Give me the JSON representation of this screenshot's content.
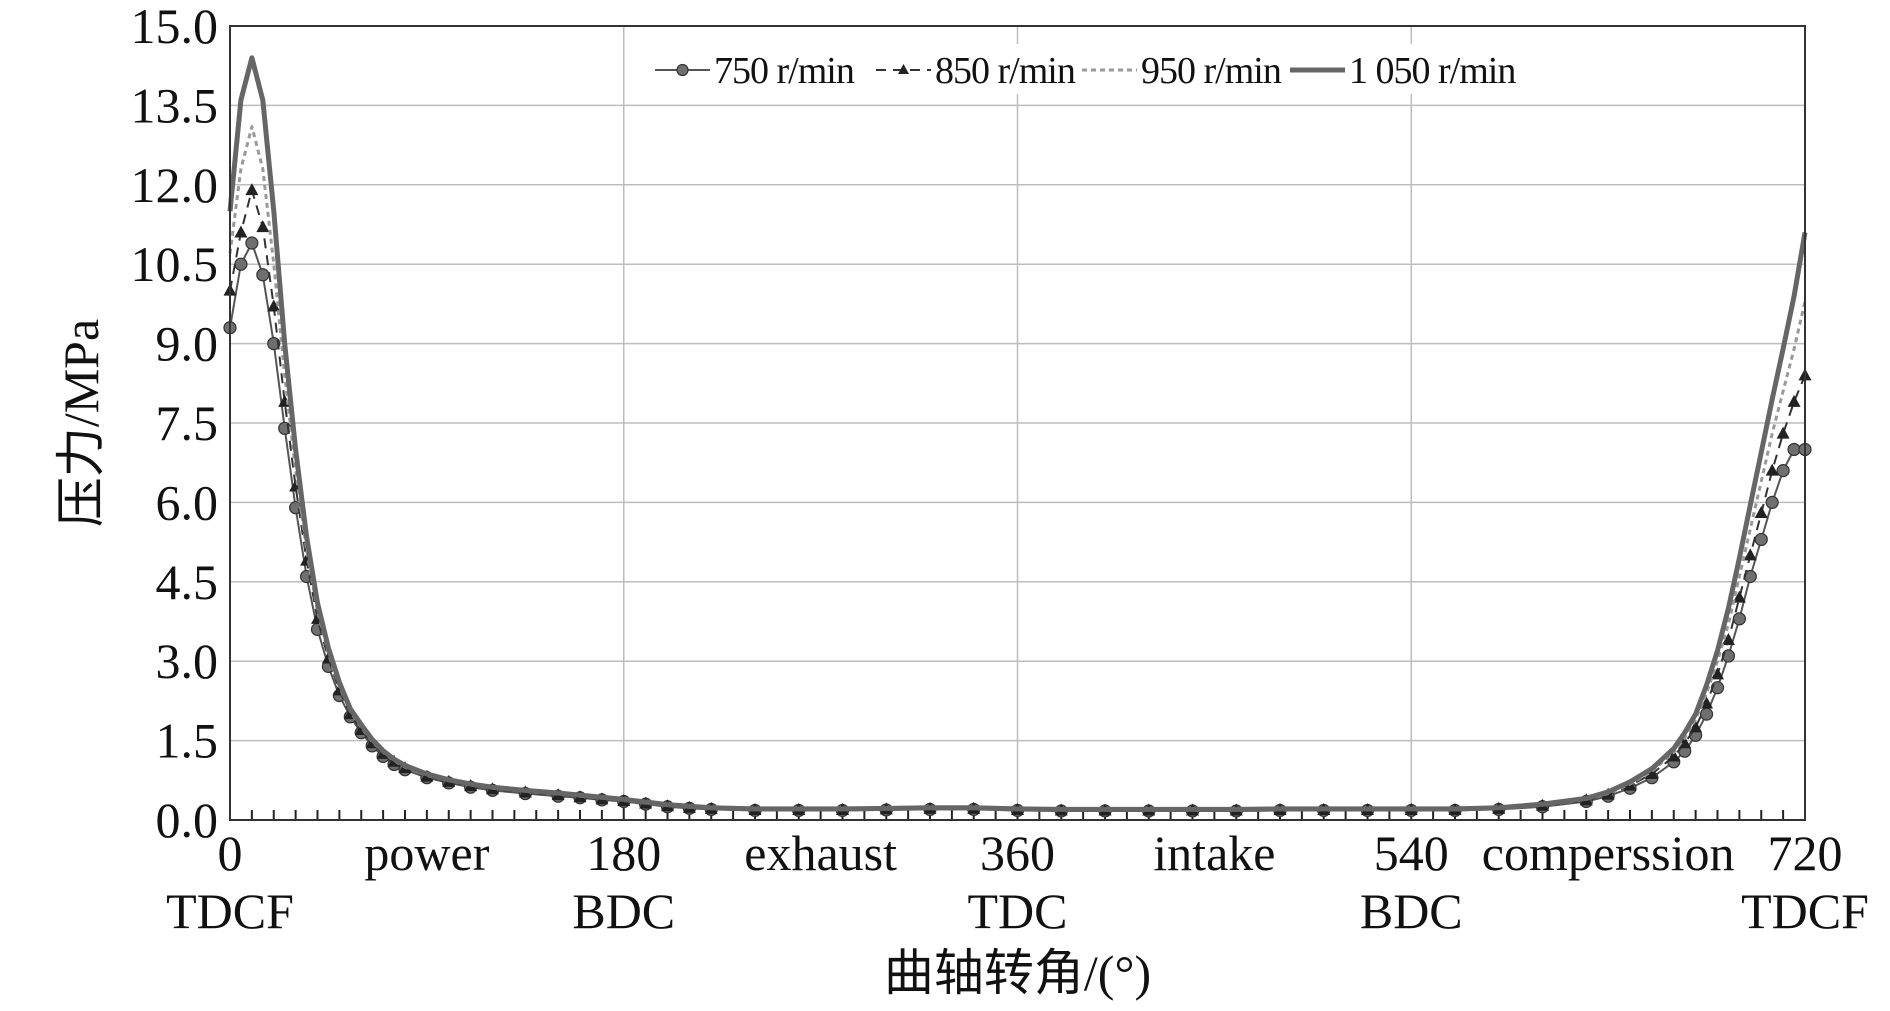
{
  "chart_data": {
    "type": "line",
    "title": "",
    "xlabel": "曲轴转角/(°)",
    "ylabel": "压力/MPa",
    "xlim": [
      0,
      720
    ],
    "ylim": [
      0,
      15
    ],
    "grid": true,
    "legend_position": "top-center",
    "y_ticks": [
      "0.0",
      "1.5",
      "3.0",
      "4.5",
      "6.0",
      "7.5",
      "9.0",
      "10.5",
      "12.0",
      "13.5",
      "15.0"
    ],
    "x_tick_labels": [
      {
        "x": 0,
        "line1": "0",
        "line2": "TDCF"
      },
      {
        "x": 90,
        "line1": "power",
        "line2": ""
      },
      {
        "x": 180,
        "line1": "180",
        "line2": "BDC"
      },
      {
        "x": 270,
        "line1": "exhaust",
        "line2": ""
      },
      {
        "x": 360,
        "line1": "360",
        "line2": "TDC"
      },
      {
        "x": 450,
        "line1": "intake",
        "line2": ""
      },
      {
        "x": 540,
        "line1": "540",
        "line2": "BDC"
      },
      {
        "x": 630,
        "line1": "comperssion",
        "line2": ""
      },
      {
        "x": 720,
        "line1": "720",
        "line2": "TDCF"
      }
    ],
    "x": [
      0,
      5,
      10,
      15,
      20,
      25,
      30,
      35,
      40,
      45,
      50,
      55,
      60,
      65,
      70,
      75,
      80,
      90,
      100,
      110,
      120,
      135,
      150,
      160,
      170,
      180,
      190,
      200,
      210,
      220,
      240,
      260,
      280,
      300,
      320,
      340,
      360,
      380,
      400,
      420,
      440,
      460,
      480,
      500,
      520,
      540,
      560,
      580,
      600,
      620,
      630,
      640,
      650,
      660,
      665,
      670,
      675,
      680,
      685,
      690,
      695,
      700,
      705,
      710,
      715,
      720
    ],
    "series": [
      {
        "name": "750 r/min",
        "color": "#555555",
        "marker": "circle",
        "dash": "",
        "width": 2,
        "values": [
          9.3,
          10.5,
          10.9,
          10.3,
          9.0,
          7.4,
          5.9,
          4.6,
          3.6,
          2.9,
          2.35,
          1.95,
          1.65,
          1.4,
          1.2,
          1.05,
          0.95,
          0.8,
          0.7,
          0.62,
          0.56,
          0.5,
          0.45,
          0.42,
          0.38,
          0.35,
          0.3,
          0.25,
          0.22,
          0.2,
          0.18,
          0.18,
          0.18,
          0.19,
          0.2,
          0.2,
          0.18,
          0.17,
          0.17,
          0.17,
          0.17,
          0.17,
          0.18,
          0.18,
          0.18,
          0.18,
          0.18,
          0.2,
          0.25,
          0.35,
          0.45,
          0.6,
          0.8,
          1.1,
          1.3,
          1.6,
          2.0,
          2.5,
          3.1,
          3.8,
          4.6,
          5.3,
          6.0,
          6.6,
          7.0,
          7.0
        ]
      },
      {
        "name": "850 r/min",
        "color": "#333333",
        "marker": "triangle",
        "dash": "10,7",
        "width": 2,
        "values": [
          10.0,
          11.1,
          11.9,
          11.2,
          9.7,
          7.9,
          6.3,
          4.9,
          3.8,
          3.05,
          2.45,
          2.0,
          1.7,
          1.45,
          1.25,
          1.1,
          0.98,
          0.82,
          0.72,
          0.64,
          0.58,
          0.52,
          0.47,
          0.43,
          0.39,
          0.36,
          0.31,
          0.26,
          0.23,
          0.21,
          0.19,
          0.19,
          0.19,
          0.2,
          0.21,
          0.21,
          0.19,
          0.18,
          0.18,
          0.18,
          0.18,
          0.18,
          0.19,
          0.19,
          0.19,
          0.19,
          0.19,
          0.21,
          0.27,
          0.37,
          0.48,
          0.65,
          0.87,
          1.2,
          1.45,
          1.75,
          2.2,
          2.75,
          3.4,
          4.2,
          5.0,
          5.8,
          6.6,
          7.3,
          7.9,
          8.4
        ]
      },
      {
        "name": "950 r/min",
        "color": "#999999",
        "marker": "",
        "dash": "5,4",
        "width": 3,
        "values": [
          10.7,
          12.3,
          13.1,
          12.3,
          10.5,
          8.4,
          6.6,
          5.1,
          3.95,
          3.15,
          2.52,
          2.05,
          1.75,
          1.48,
          1.28,
          1.12,
          1.0,
          0.84,
          0.74,
          0.66,
          0.6,
          0.54,
          0.49,
          0.45,
          0.41,
          0.37,
          0.32,
          0.27,
          0.24,
          0.22,
          0.2,
          0.2,
          0.2,
          0.21,
          0.22,
          0.22,
          0.2,
          0.19,
          0.19,
          0.19,
          0.19,
          0.19,
          0.2,
          0.2,
          0.2,
          0.2,
          0.2,
          0.22,
          0.28,
          0.39,
          0.5,
          0.68,
          0.92,
          1.28,
          1.55,
          1.9,
          2.4,
          3.0,
          3.7,
          4.6,
          5.5,
          6.4,
          7.3,
          8.1,
          8.9,
          9.8
        ]
      },
      {
        "name": "1 050 r/min",
        "color": "#666666",
        "marker": "",
        "dash": "",
        "width": 5,
        "values": [
          11.5,
          13.6,
          14.4,
          13.6,
          11.5,
          9.0,
          7.0,
          5.35,
          4.1,
          3.25,
          2.6,
          2.1,
          1.8,
          1.52,
          1.31,
          1.15,
          1.03,
          0.87,
          0.76,
          0.68,
          0.62,
          0.56,
          0.51,
          0.47,
          0.43,
          0.39,
          0.34,
          0.29,
          0.26,
          0.23,
          0.21,
          0.21,
          0.21,
          0.22,
          0.23,
          0.23,
          0.21,
          0.2,
          0.2,
          0.2,
          0.2,
          0.2,
          0.21,
          0.21,
          0.21,
          0.21,
          0.21,
          0.23,
          0.3,
          0.41,
          0.53,
          0.72,
          0.97,
          1.35,
          1.65,
          2.0,
          2.55,
          3.2,
          4.0,
          4.95,
          5.95,
          6.95,
          7.95,
          8.9,
          9.9,
          11.1
        ]
      }
    ]
  }
}
